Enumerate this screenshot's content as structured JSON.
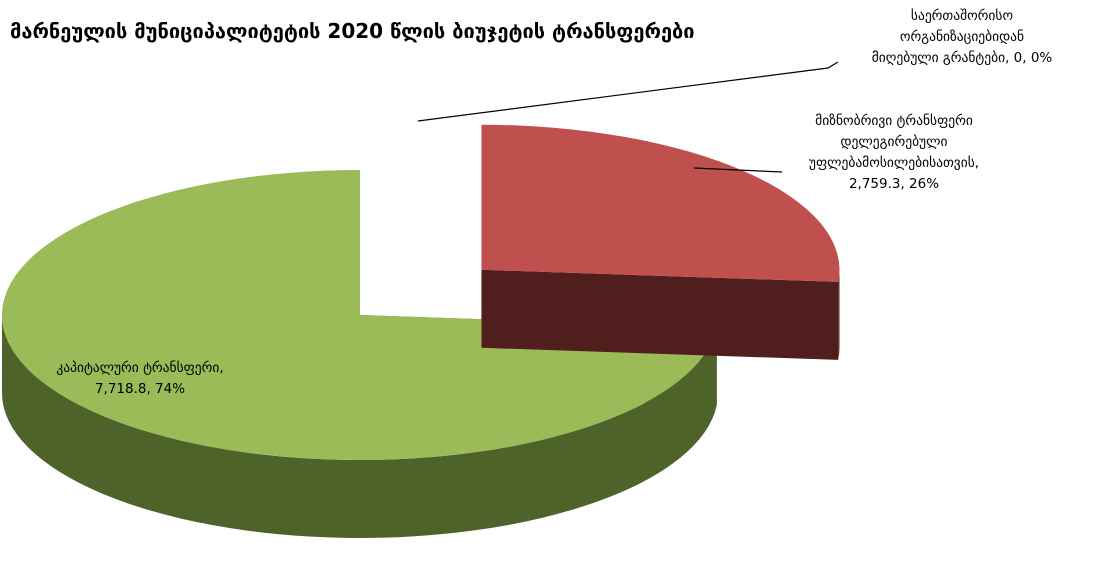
{
  "chart_data": {
    "type": "pie3d",
    "title": "მარნეულის მუნიციპალიტეტის 2020 წლის ბიუჯეტის ტრანსფერები",
    "categories": [
      "საერთაშორისო ორგანიზაციებიდან მიღებული გრანტები",
      "მიზნობრივი ტრანსფერი დელეგირებული უფლებამოსილებისათვის",
      "კაპიტალური ტრანსფერი"
    ],
    "values": [
      0,
      2759.3,
      7718.8
    ],
    "value_labels": [
      [
        "საერთაშორისო",
        "ორგანიზაციებიდან",
        "მიღებული გრანტები, 0, 0%"
      ],
      [
        "მიზნობრივი ტრანსფერი",
        "დელეგირებული",
        "უფლებამოსილებისათვის,",
        "2,759.3, 26%"
      ],
      [
        "კაპიტალური ტრანსფერი,",
        "7,718.8, 74%"
      ]
    ],
    "colors": [
      "#4f81bd",
      "#c0504d",
      "#9bbb59"
    ],
    "side_colors": [
      "#27405e",
      "#4f1e1d",
      "#4e6329"
    ],
    "exploded": [
      false,
      true,
      false
    ]
  }
}
